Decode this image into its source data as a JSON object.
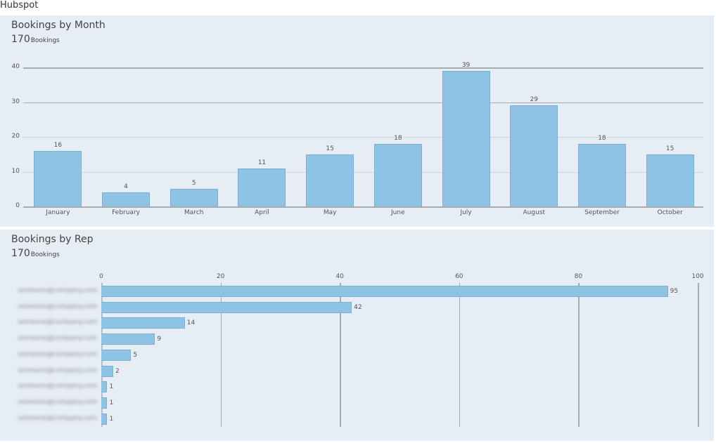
{
  "app": {
    "title": "Hubspot"
  },
  "panels": [
    {
      "title": "Bookings by Month",
      "total": "170",
      "unit": "Bookings"
    },
    {
      "title": "Bookings by Rep",
      "total": "170",
      "unit": "Bookings"
    }
  ],
  "colors": {
    "bar": "#8ec3e5",
    "panel_bg": "#e6edf4"
  },
  "chart_data": [
    {
      "type": "bar",
      "title": "Bookings by Month",
      "subtitle": "170 Bookings",
      "categories": [
        "January",
        "February",
        "March",
        "April",
        "May",
        "June",
        "July",
        "August",
        "September",
        "October"
      ],
      "values": [
        16,
        4,
        5,
        11,
        15,
        18,
        39,
        29,
        18,
        15
      ],
      "value_labels": [
        "16",
        "4",
        "5",
        "11",
        "15",
        "18",
        "39",
        "29",
        "18",
        "15"
      ],
      "yticks": [
        "0",
        "10",
        "20",
        "30",
        "40"
      ],
      "ylim": [
        0,
        40
      ],
      "xlabel": "",
      "ylabel": "",
      "grid": true
    },
    {
      "type": "bar",
      "orientation": "horizontal",
      "title": "Bookings by Rep",
      "subtitle": "170 Bookings",
      "categories": [
        "[redacted rep 1]",
        "[redacted rep 2]",
        "[redacted rep 3]",
        "[redacted rep 4]",
        "[redacted rep 5]",
        "[redacted rep 6]",
        "[redacted rep 7]",
        "[redacted rep 8]",
        "[redacted rep 9]"
      ],
      "values": [
        95,
        42,
        14,
        9,
        5,
        2,
        1,
        1,
        1
      ],
      "value_labels": [
        "95",
        "42",
        "14",
        "9",
        "5",
        "2",
        "1",
        "1",
        "1"
      ],
      "xticks": [
        "0",
        "20",
        "40",
        "60",
        "80",
        "100"
      ],
      "xlim": [
        0,
        100
      ],
      "grid": true
    }
  ]
}
